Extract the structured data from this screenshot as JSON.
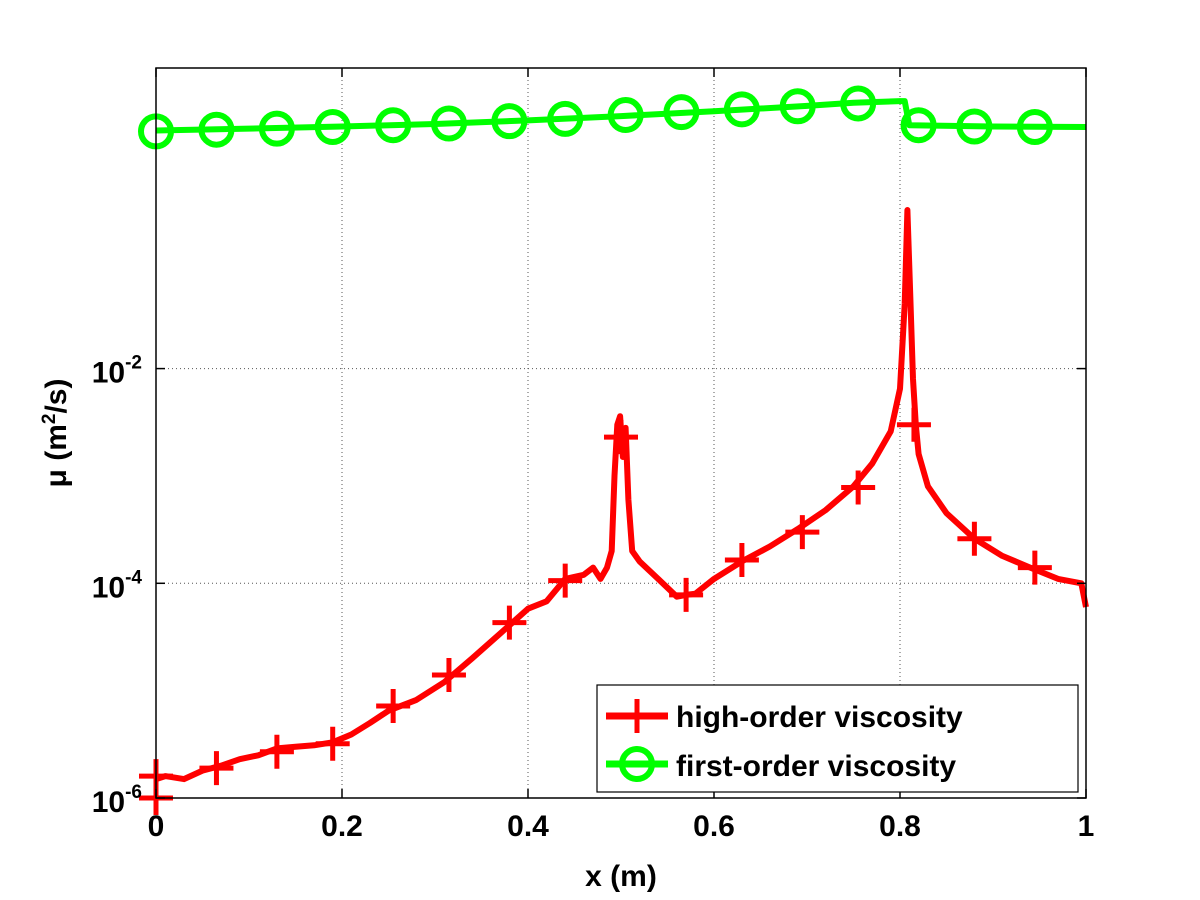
{
  "chart_data": {
    "type": "line",
    "xlabel": "x (m)",
    "ylabel_base": "μ (m",
    "ylabel_sup": "2",
    "ylabel_end": "/s)",
    "xlim": [
      0,
      1
    ],
    "ylim_log10": [
      -6,
      0.8
    ],
    "yscale": "log",
    "grid": true,
    "legend_position": "bottom-right",
    "x_ticks": [
      {
        "value": 0,
        "label": "0"
      },
      {
        "value": 0.2,
        "label": "0.2"
      },
      {
        "value": 0.4,
        "label": "0.4"
      },
      {
        "value": 0.6,
        "label": "0.6"
      },
      {
        "value": 0.8,
        "label": "0.8"
      },
      {
        "value": 1,
        "label": "1"
      }
    ],
    "y_ticks": [
      {
        "value": 1e-06,
        "base": "10",
        "exp": "-6"
      },
      {
        "value": 0.0001,
        "base": "10",
        "exp": "-4"
      },
      {
        "value": 0.01,
        "base": "10",
        "exp": "-2"
      }
    ],
    "series": [
      {
        "name": "high-order viscosity",
        "color": "#ff0000",
        "marker": "plus",
        "x": [
          0,
          0.01,
          0.03,
          0.05,
          0.07,
          0.09,
          0.11,
          0.13,
          0.15,
          0.17,
          0.19,
          0.21,
          0.23,
          0.25,
          0.28,
          0.31,
          0.34,
          0.37,
          0.4,
          0.42,
          0.44,
          0.46,
          0.47,
          0.478,
          0.485,
          0.49,
          0.493,
          0.496,
          0.499,
          0.502,
          0.505,
          0.508,
          0.512,
          0.52,
          0.54,
          0.56,
          0.57,
          0.58,
          0.6,
          0.63,
          0.66,
          0.69,
          0.72,
          0.75,
          0.77,
          0.79,
          0.8,
          0.805,
          0.808,
          0.811,
          0.814,
          0.817,
          0.82,
          0.83,
          0.85,
          0.88,
          0.91,
          0.94,
          0.97,
          0.995,
          1.0
        ],
        "y": [
          1.5e-06,
          1.6e-06,
          1.5e-06,
          1.8e-06,
          2e-06,
          2.3e-06,
          2.5e-06,
          2.9e-06,
          3e-06,
          3.1e-06,
          3.3e-06,
          3.9e-06,
          5e-06,
          6.5e-06,
          8.2e-06,
          1.2e-05,
          2e-05,
          3.4e-05,
          5.8e-05,
          6.8e-05,
          0.00011,
          0.00012,
          0.00014,
          0.00011,
          0.00014,
          0.0002,
          0.001,
          0.003,
          0.0036,
          0.0015,
          0.0028,
          0.0006,
          0.0002,
          0.00016,
          0.00011,
          7.5e-05,
          7.8e-05,
          8e-05,
          0.00011,
          0.00016,
          0.00022,
          0.00032,
          0.00048,
          0.0008,
          0.0013,
          0.0026,
          0.0065,
          0.04,
          0.3,
          0.05,
          0.008,
          0.003,
          0.0016,
          0.0008,
          0.00045,
          0.00026,
          0.00018,
          0.00014,
          0.00011,
          0.0001,
          6e-05
        ],
        "marker_x": [
          0,
          0,
          0.065,
          0.13,
          0.19,
          0.255,
          0.315,
          0.38,
          0.44,
          0.5,
          0.57,
          0.63,
          0.695,
          0.755,
          0.815,
          0.88,
          0.945
        ],
        "marker_y": [
          1e-06,
          1.6e-06,
          1.9e-06,
          2.7e-06,
          3.2e-06,
          7.2e-06,
          1.4e-05,
          4.3e-05,
          0.000106,
          0.0023,
          7.8e-05,
          0.000165,
          0.0003,
          0.00078,
          0.003,
          0.00026,
          0.00014
        ]
      },
      {
        "name": "first-order viscosity",
        "color": "#00ff00",
        "marker": "circle",
        "x": [
          0,
          0.1,
          0.2,
          0.3,
          0.4,
          0.5,
          0.6,
          0.7,
          0.75,
          0.8,
          0.805,
          0.81,
          0.9,
          1.0
        ],
        "y": [
          1.65,
          1.72,
          1.8,
          1.9,
          2.05,
          2.25,
          2.5,
          2.8,
          3.0,
          3.1,
          3.1,
          1.85,
          1.8,
          1.78
        ],
        "marker_x": [
          0,
          0.065,
          0.13,
          0.19,
          0.255,
          0.315,
          0.38,
          0.44,
          0.505,
          0.565,
          0.63,
          0.69,
          0.755,
          0.82,
          0.88,
          0.945
        ],
        "marker_y": [
          1.62,
          1.68,
          1.72,
          1.78,
          1.85,
          1.92,
          2.02,
          2.12,
          2.3,
          2.45,
          2.6,
          2.78,
          2.95,
          1.85,
          1.8,
          1.78
        ]
      }
    ]
  }
}
